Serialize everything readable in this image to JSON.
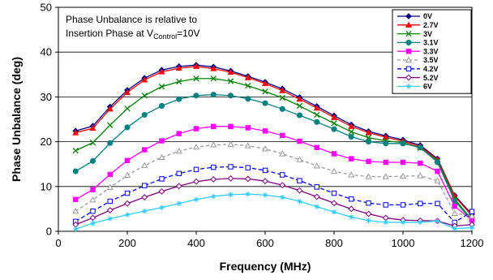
{
  "chart_data": {
    "type": "line",
    "xlabel": "Frequency  (MHz)",
    "ylabel": "Phase Unbalance (deg)",
    "xlim": [
      0,
      1200
    ],
    "ylim": [
      0,
      50
    ],
    "xticks": [
      0,
      200,
      400,
      600,
      800,
      1000,
      1200
    ],
    "yticks": [
      0,
      10,
      20,
      30,
      40,
      50
    ],
    "grid": "horizontal",
    "legend_position": "top-right",
    "annotation": {
      "line1": "Phase Unbalance is relative to",
      "line2_prefix": "Insertion Phase at V",
      "line2_sub": "Control",
      "line2_suffix": "=10V"
    },
    "x": [
      50,
      100,
      150,
      200,
      250,
      300,
      350,
      400,
      450,
      500,
      550,
      600,
      650,
      700,
      750,
      800,
      850,
      900,
      950,
      1000,
      1050,
      1100,
      1150,
      1200
    ],
    "series": [
      {
        "name": "0V",
        "color": "#000080",
        "marker": "diamond",
        "dash": "solid",
        "values": [
          22.4,
          23.5,
          27.8,
          31.5,
          34.2,
          36.0,
          36.8,
          37.1,
          36.7,
          35.8,
          34.6,
          33.3,
          31.8,
          29.9,
          27.9,
          25.8,
          23.8,
          22.3,
          21.3,
          20.4,
          19.2,
          16.2,
          8.0,
          3.8
        ]
      },
      {
        "name": "2.7V",
        "color": "#ff0000",
        "marker": "triangle",
        "dash": "solid",
        "values": [
          22.0,
          23.0,
          27.3,
          31.0,
          33.8,
          35.6,
          36.4,
          36.8,
          36.3,
          35.5,
          34.3,
          33.0,
          31.4,
          29.5,
          27.5,
          25.4,
          23.4,
          22.0,
          21.0,
          20.1,
          18.9,
          16.0,
          7.8,
          3.5
        ]
      },
      {
        "name": "3V",
        "color": "#008000",
        "marker": "x",
        "dash": "solid",
        "values": [
          18.0,
          19.8,
          23.7,
          27.4,
          30.3,
          32.3,
          33.4,
          34.1,
          34.1,
          33.5,
          32.5,
          31.2,
          29.8,
          28.0,
          26.0,
          24.1,
          22.2,
          20.9,
          20.2,
          19.8,
          18.6,
          15.8,
          7.2,
          2.6
        ]
      },
      {
        "name": "3.1V",
        "color": "#008080",
        "marker": "circle",
        "dash": "solid",
        "values": [
          13.4,
          15.7,
          19.7,
          23.2,
          26.0,
          28.0,
          29.5,
          30.3,
          30.5,
          30.3,
          29.6,
          28.6,
          27.3,
          25.9,
          24.4,
          22.8,
          21.1,
          20.0,
          19.6,
          19.6,
          18.7,
          15.4,
          6.8,
          2.4
        ]
      },
      {
        "name": "3.3V",
        "color": "#ff00ff",
        "marker": "square",
        "dash": "solid",
        "values": [
          7.1,
          9.3,
          12.7,
          15.8,
          18.2,
          20.2,
          21.8,
          22.9,
          23.4,
          23.4,
          23.1,
          22.4,
          21.4,
          20.1,
          18.7,
          17.3,
          16.2,
          15.6,
          15.4,
          15.4,
          15.2,
          13.4,
          5.6,
          2.5
        ]
      },
      {
        "name": "3.5V",
        "color": "#999999",
        "marker": "triangle-open",
        "dash": "4,3",
        "values": [
          4.5,
          7.0,
          9.8,
          12.5,
          14.7,
          16.5,
          17.9,
          18.8,
          19.3,
          19.4,
          19.1,
          18.4,
          17.3,
          16.0,
          14.6,
          13.4,
          12.6,
          12.2,
          12.2,
          12.3,
          12.4,
          11.3,
          4.0,
          3.4
        ]
      },
      {
        "name": "4.2V",
        "color": "#0000ff",
        "marker": "square-open",
        "dash": "5,3",
        "values": [
          2.2,
          4.5,
          6.7,
          8.5,
          10.2,
          11.7,
          12.9,
          13.8,
          14.3,
          14.4,
          14.2,
          13.6,
          12.6,
          11.3,
          9.9,
          8.5,
          7.2,
          6.3,
          5.9,
          5.9,
          6.2,
          6.2,
          2.0,
          4.4
        ]
      },
      {
        "name": "5.2V",
        "color": "#800080",
        "marker": "diamond-open",
        "dash": "solid",
        "values": [
          1.5,
          3.0,
          4.7,
          6.2,
          7.6,
          8.9,
          10.1,
          11.1,
          11.6,
          11.8,
          11.7,
          11.2,
          10.3,
          9.1,
          7.7,
          6.3,
          5.0,
          3.9,
          3.0,
          2.5,
          2.4,
          2.3,
          1.2,
          1.5
        ]
      },
      {
        "name": "6V",
        "color": "#33ccff",
        "marker": "star",
        "dash": "solid",
        "values": [
          0.5,
          1.8,
          2.8,
          3.7,
          4.5,
          5.3,
          6.2,
          7.1,
          7.8,
          8.2,
          8.3,
          8.1,
          7.6,
          6.7,
          5.5,
          4.3,
          3.2,
          2.4,
          2.0,
          2.0,
          2.0,
          2.3,
          0.6,
          0.8
        ]
      }
    ]
  }
}
